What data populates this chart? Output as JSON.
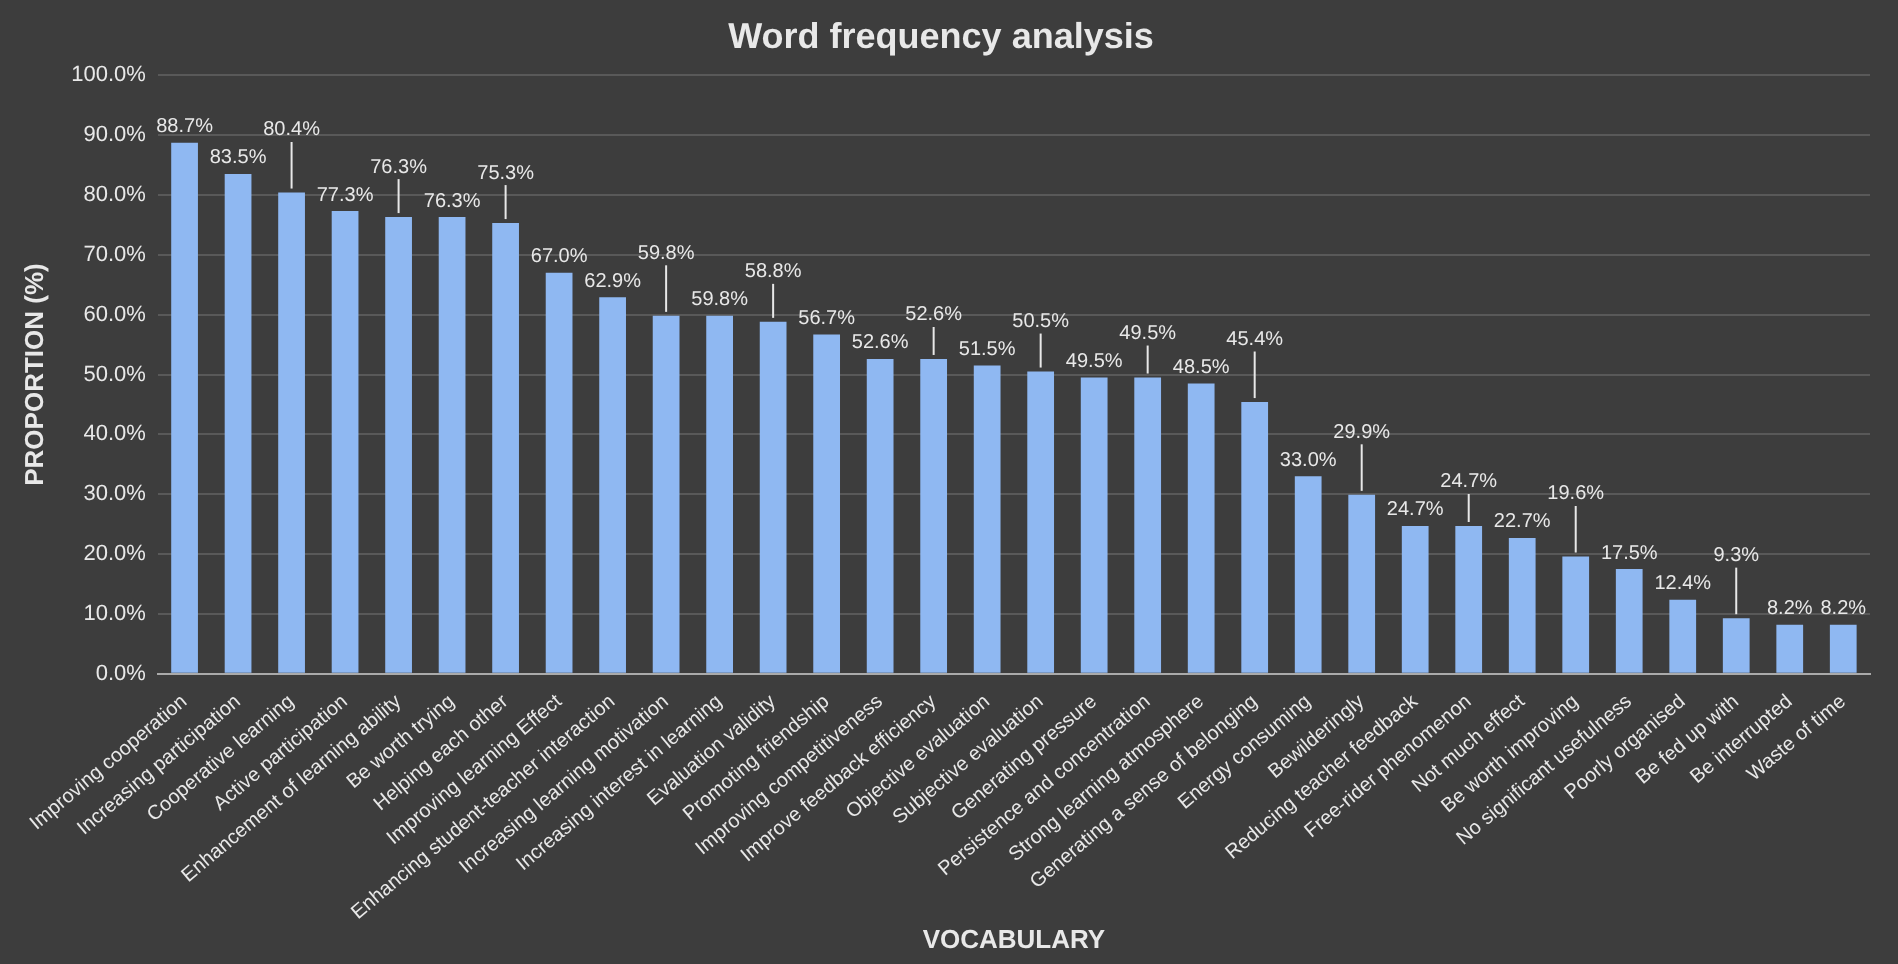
{
  "chart_data": {
    "type": "bar",
    "title": "Word frequency analysis",
    "xlabel": "VOCABULARY",
    "ylabel": "PROPORTION (%)",
    "categories": [
      "Improving cooperation",
      "Increasing participation",
      "Cooperative learning",
      "Active participation",
      "Enhancement of learning ability",
      "Be worth trying",
      "Helping each other",
      "Improving learning Effect",
      "Enhancing student-teacher interaction",
      "Increasing learning motivation",
      "Increasing interest in learning",
      "Evaluation validity",
      "Promoting friendship",
      "Improving competitiveness",
      "Improve feedback efficiency",
      "Objective evaluation",
      "Subjective evaluation",
      "Generating pressure",
      "Persistence and concentration",
      "Strong learning atmosphere",
      "Generating a sense of belonging",
      "Energy consuming",
      "Bewilderingly",
      "Reducing teacher feedback",
      "Free-rider phenomenon",
      "Not much effect",
      "Be worth improving",
      "No significant usefulness",
      "Poorly organised",
      "Be fed up with",
      "Be interrupted",
      "Waste of time"
    ],
    "values": [
      88.7,
      83.5,
      80.4,
      77.3,
      76.3,
      76.3,
      75.3,
      67.0,
      62.9,
      59.8,
      59.8,
      58.8,
      56.7,
      52.6,
      52.6,
      51.5,
      50.5,
      49.5,
      49.5,
      48.5,
      45.4,
      33.0,
      29.9,
      24.7,
      24.7,
      22.7,
      19.6,
      17.5,
      12.4,
      9.3,
      8.2,
      8.2
    ],
    "value_labels": [
      "88.7%",
      "83.5%",
      "80.4%",
      "77.3%",
      "76.3%",
      "76.3%",
      "75.3%",
      "67.0%",
      "62.9%",
      "59.8%",
      "59.8%",
      "58.8%",
      "56.7%",
      "52.6%",
      "52.6%",
      "51.5%",
      "50.5%",
      "49.5%",
      "49.5%",
      "48.5%",
      "45.4%",
      "33.0%",
      "29.9%",
      "24.7%",
      "24.7%",
      "22.7%",
      "19.6%",
      "17.5%",
      "12.4%",
      "9.3%",
      "8.2%",
      "8.2%"
    ],
    "color": "#8fb8f2",
    "ylim": [
      0,
      100
    ],
    "yticks": [
      {
        "value": 0,
        "label": "0.0%"
      },
      {
        "value": 10,
        "label": "10.0%"
      },
      {
        "value": 20,
        "label": "20.0%"
      },
      {
        "value": 30,
        "label": "30.0%"
      },
      {
        "value": 40,
        "label": "40.0%"
      },
      {
        "value": 50,
        "label": "50.0%"
      },
      {
        "value": 60,
        "label": "60.0%"
      },
      {
        "value": 70,
        "label": "70.0%"
      },
      {
        "value": 80,
        "label": "80.0%"
      },
      {
        "value": 90,
        "label": "90.0%"
      },
      {
        "value": 100,
        "label": "100.0%"
      }
    ],
    "grid": "y",
    "legend": false
  }
}
